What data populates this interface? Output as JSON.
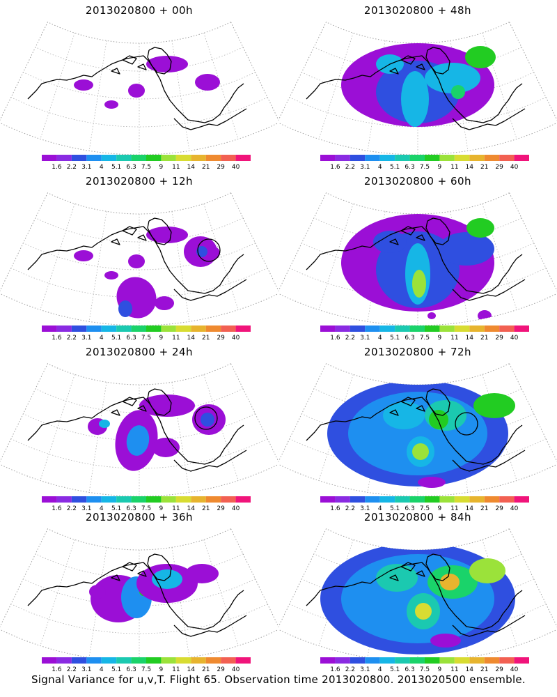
{
  "colorbar": {
    "labels": [
      "1.6",
      "2.2",
      "3.1",
      "4",
      "5.1",
      "6.3",
      "7.5",
      "9",
      "11",
      "14",
      "21",
      "29",
      "40"
    ],
    "colors": [
      "#9b0fd6",
      "#8a2be2",
      "#2f4fe0",
      "#1e8ff0",
      "#16b6e6",
      "#1bc9b0",
      "#1ad36a",
      "#22cc22",
      "#9be23a",
      "#d8dc32",
      "#e7b42e",
      "#ef8a30",
      "#f26052",
      "#f0147a"
    ]
  },
  "panels": [
    {
      "title": "2013020800 + 00h",
      "level": 0
    },
    {
      "title": "2013020800 + 12h",
      "level": 1
    },
    {
      "title": "2013020800 + 24h",
      "level": 2
    },
    {
      "title": "2013020800 + 36h",
      "level": 3
    },
    {
      "title": "2013020800 + 48h",
      "level": 4
    },
    {
      "title": "2013020800 + 60h",
      "level": 5
    },
    {
      "title": "2013020800 + 72h",
      "level": 6
    },
    {
      "title": "2013020800 + 84h",
      "level": 7
    }
  ],
  "footer": "Signal Variance for u,v,T. Flight 65. Observation time 2013020800. 2013020500 ensemble."
}
